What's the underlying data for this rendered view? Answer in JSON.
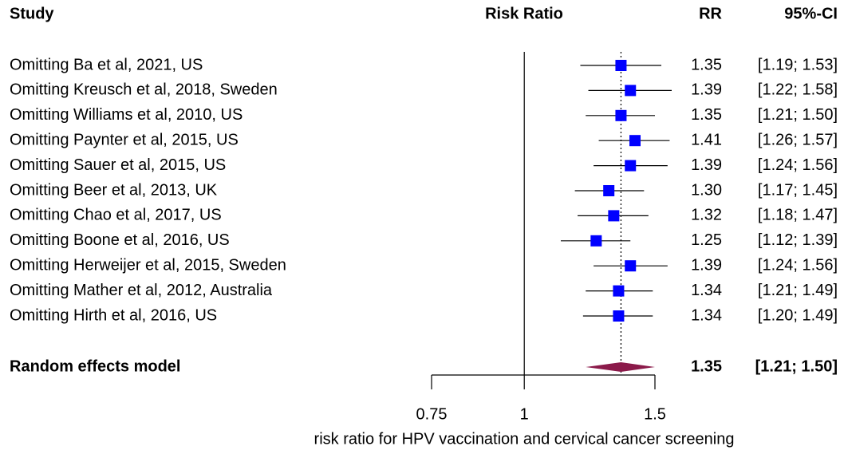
{
  "chart_data": {
    "type": "forest",
    "headers": [
      "Study",
      "Risk Ratio",
      "RR",
      "95%-CI"
    ],
    "categories": [
      "Omitting Ba et al, 2021, US",
      "Omitting Kreusch et al, 2018, Sweden",
      "Omitting Williams et al, 2010, US",
      "Omitting Paynter et al, 2015, US",
      "Omitting Sauer et al, 2015, US",
      "Omitting Beer et al, 2013, UK",
      "Omitting Chao et al, 2017, US",
      "Omitting Boone et al, 2016, US",
      "Omitting Herweijer et al, 2015, Sweden",
      "Omitting Mather et al, 2012, Australia",
      "Omitting Hirth et al, 2016, US"
    ],
    "values": [
      1.35,
      1.39,
      1.35,
      1.41,
      1.39,
      1.3,
      1.32,
      1.25,
      1.39,
      1.34,
      1.34
    ],
    "value_labels": [
      "1.35",
      "1.39",
      "1.35",
      "1.41",
      "1.39",
      "1.30",
      "1.32",
      "1.25",
      "1.39",
      "1.34",
      "1.34"
    ],
    "lower": [
      1.19,
      1.22,
      1.21,
      1.26,
      1.24,
      1.17,
      1.18,
      1.12,
      1.24,
      1.21,
      1.2
    ],
    "upper": [
      1.53,
      1.58,
      1.5,
      1.57,
      1.56,
      1.45,
      1.47,
      1.39,
      1.56,
      1.49,
      1.49
    ],
    "ci_labels": [
      "[1.19; 1.53]",
      "[1.22; 1.58]",
      "[1.21; 1.50]",
      "[1.26; 1.57]",
      "[1.24; 1.56]",
      "[1.17; 1.45]",
      "[1.18; 1.47]",
      "[1.12; 1.39]",
      "[1.24; 1.56]",
      "[1.21; 1.49]",
      "[1.20; 1.49]"
    ],
    "color": "#0000ff",
    "summary": {
      "name": "Random effects model",
      "value": 1.35,
      "value_label": "1.35",
      "lower": 1.21,
      "upper": 1.5,
      "ci_label": "[1.21; 1.50]",
      "color": "#8b1a4a"
    },
    "xlim": [
      0.75,
      1.5
    ],
    "xticks": [
      0.75,
      1,
      1.5
    ],
    "x_log": true,
    "reference": 1,
    "xlabel": "risk ratio for HPV vaccination and cervical cancer screening"
  }
}
